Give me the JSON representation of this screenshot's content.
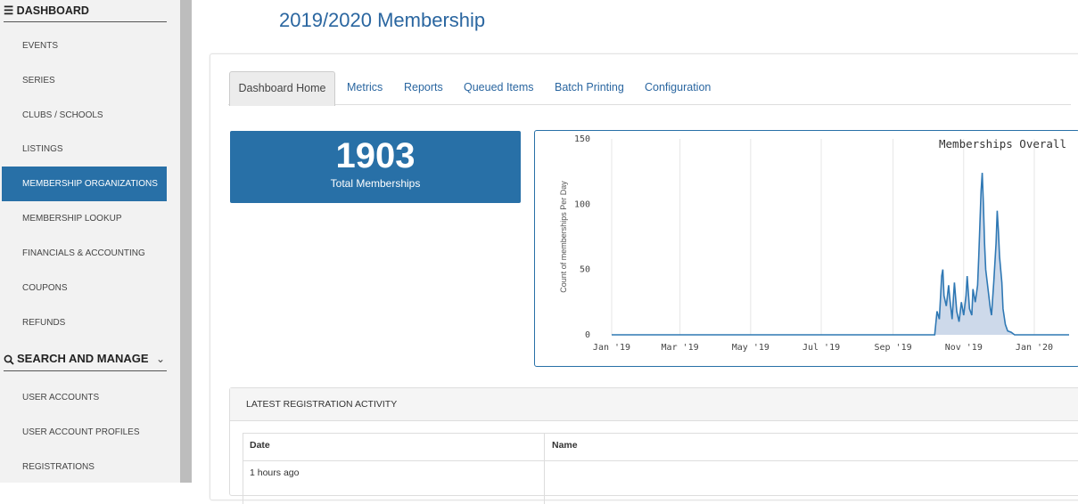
{
  "sidebar": {
    "dashboard_header": "☰ DASHBOARD",
    "dashboard_items": [
      {
        "label": "EVENTS"
      },
      {
        "label": "SERIES"
      },
      {
        "label": "CLUBS / SCHOOLS"
      },
      {
        "label": "LISTINGS"
      },
      {
        "label": "MEMBERSHIP ORGANIZATIONS",
        "active": true
      },
      {
        "label": "MEMBERSHIP LOOKUP"
      },
      {
        "label": "FINANCIALS & ACCOUNTING"
      },
      {
        "label": "COUPONS"
      },
      {
        "label": "REFUNDS"
      }
    ],
    "search_header": "SEARCH AND MANAGE",
    "search_icon": "search-icon",
    "search_items": [
      {
        "label": "USER ACCOUNTS"
      },
      {
        "label": "USER ACCOUNT PROFILES"
      },
      {
        "label": "REGISTRATIONS"
      }
    ]
  },
  "main": {
    "title": "2019/2020 Membership",
    "tabs": [
      {
        "label": "Dashboard Home",
        "active": true
      },
      {
        "label": "Metrics"
      },
      {
        "label": "Reports"
      },
      {
        "label": "Queued Items"
      },
      {
        "label": "Batch Printing"
      },
      {
        "label": "Configuration"
      }
    ],
    "stat": {
      "value": "1903",
      "label": "Total Memberships"
    },
    "activity": {
      "title": "LATEST REGISTRATION ACTIVITY",
      "columns": [
        "Date",
        "Name"
      ],
      "rows": [
        [
          "1 hours ago",
          ""
        ]
      ]
    }
  },
  "colors": {
    "accent": "#2870a7",
    "title": "#2a66a0",
    "line": "#2f78b4",
    "area": "#cdd9ea"
  },
  "chart_data": {
    "type": "area",
    "title": "Memberships Overall",
    "ylabel": "Count of memberships Per Day",
    "xlabel": "",
    "ylim": [
      0,
      150
    ],
    "yticks": [
      0,
      50,
      100,
      150
    ],
    "xlim": [
      "2019-01-01",
      "2020-01-31"
    ],
    "xtick_labels": [
      "Jan '19",
      "Mar '19",
      "May '19",
      "Jul '19",
      "Sep '19",
      "Nov '19",
      "Jan '20"
    ],
    "xtick_dates": [
      "2019-01-01",
      "2019-03-01",
      "2019-05-01",
      "2019-07-01",
      "2019-09-01",
      "2019-11-01",
      "2020-01-01"
    ],
    "grid": true,
    "legend": false,
    "series": [
      {
        "points": [
          [
            "2019-01-01",
            0
          ],
          [
            "2019-10-07",
            0
          ],
          [
            "2019-10-09",
            18
          ],
          [
            "2019-10-11",
            12
          ],
          [
            "2019-10-13",
            45
          ],
          [
            "2019-10-14",
            50
          ],
          [
            "2019-10-15",
            30
          ],
          [
            "2019-10-17",
            22
          ],
          [
            "2019-10-19",
            38
          ],
          [
            "2019-10-20",
            28
          ],
          [
            "2019-10-22",
            12
          ],
          [
            "2019-10-24",
            40
          ],
          [
            "2019-10-26",
            18
          ],
          [
            "2019-10-28",
            10
          ],
          [
            "2019-10-30",
            25
          ],
          [
            "2019-11-01",
            15
          ],
          [
            "2019-11-03",
            30
          ],
          [
            "2019-11-04",
            45
          ],
          [
            "2019-11-06",
            20
          ],
          [
            "2019-11-08",
            15
          ],
          [
            "2019-11-09",
            35
          ],
          [
            "2019-11-11",
            25
          ],
          [
            "2019-11-13",
            38
          ],
          [
            "2019-11-14",
            60
          ],
          [
            "2019-11-15",
            85
          ],
          [
            "2019-11-16",
            110
          ],
          [
            "2019-11-17",
            124
          ],
          [
            "2019-11-18",
            100
          ],
          [
            "2019-11-19",
            70
          ],
          [
            "2019-11-20",
            50
          ],
          [
            "2019-11-22",
            35
          ],
          [
            "2019-11-24",
            20
          ],
          [
            "2019-11-25",
            15
          ],
          [
            "2019-11-27",
            40
          ],
          [
            "2019-11-29",
            70
          ],
          [
            "2019-11-30",
            95
          ],
          [
            "2019-12-01",
            80
          ],
          [
            "2019-12-02",
            60
          ],
          [
            "2019-12-04",
            40
          ],
          [
            "2019-12-05",
            20
          ],
          [
            "2019-12-07",
            8
          ],
          [
            "2019-12-09",
            3
          ],
          [
            "2019-12-12",
            2
          ],
          [
            "2019-12-15",
            0
          ],
          [
            "2020-01-31",
            0
          ]
        ]
      }
    ]
  }
}
